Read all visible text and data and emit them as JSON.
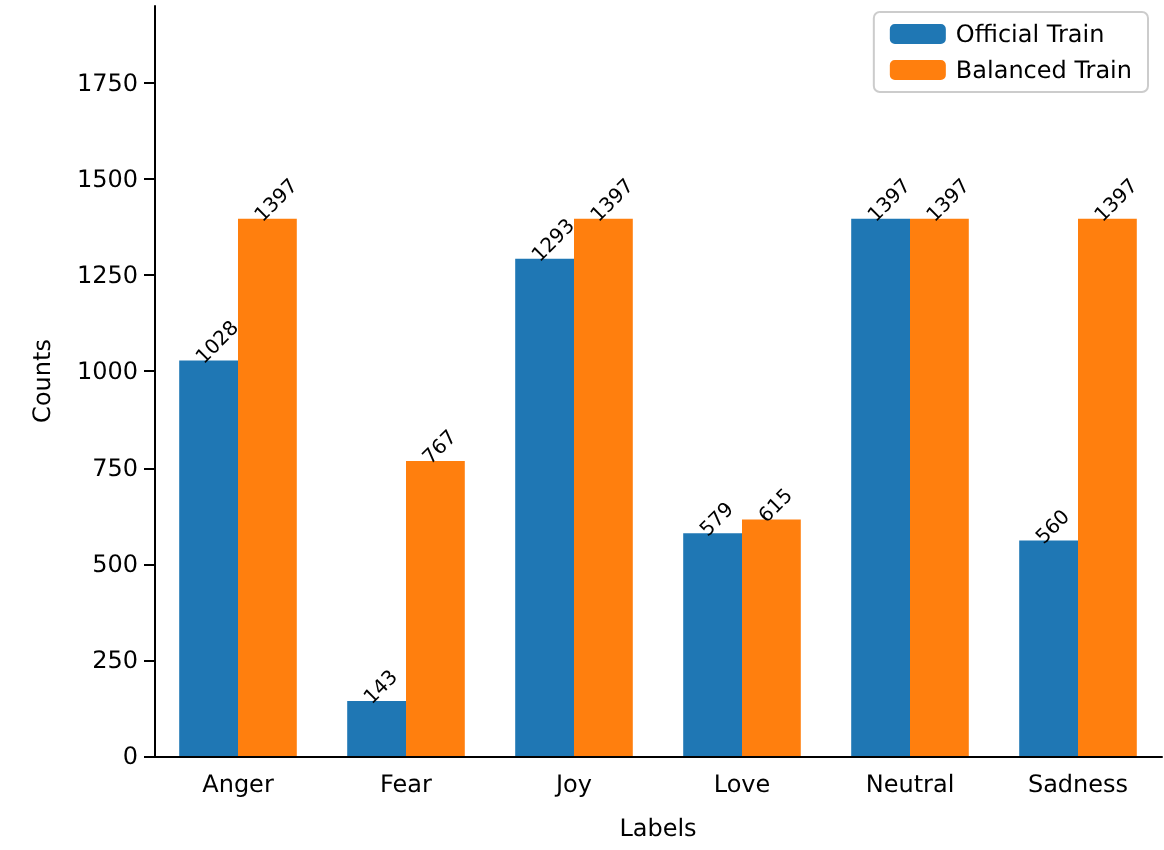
{
  "chart_data": {
    "type": "bar",
    "xlabel": "Labels",
    "ylabel": "Counts",
    "categories": [
      "Anger",
      "Fear",
      "Joy",
      "Love",
      "Neutral",
      "Sadness"
    ],
    "series": [
      {
        "name": "Official Train",
        "color": "#1f77b4",
        "values": [
          1028,
          143,
          1293,
          579,
          1397,
          560
        ]
      },
      {
        "name": "Balanced Train",
        "color": "#ff7f0e",
        "values": [
          1397,
          767,
          1397,
          615,
          1397,
          1397
        ]
      }
    ],
    "ylim": [
      0,
      1950
    ],
    "yticks": [
      0,
      250,
      500,
      750,
      1000,
      1250,
      1500,
      1750
    ],
    "data_labels": true,
    "grid": false,
    "legend": "top right"
  }
}
